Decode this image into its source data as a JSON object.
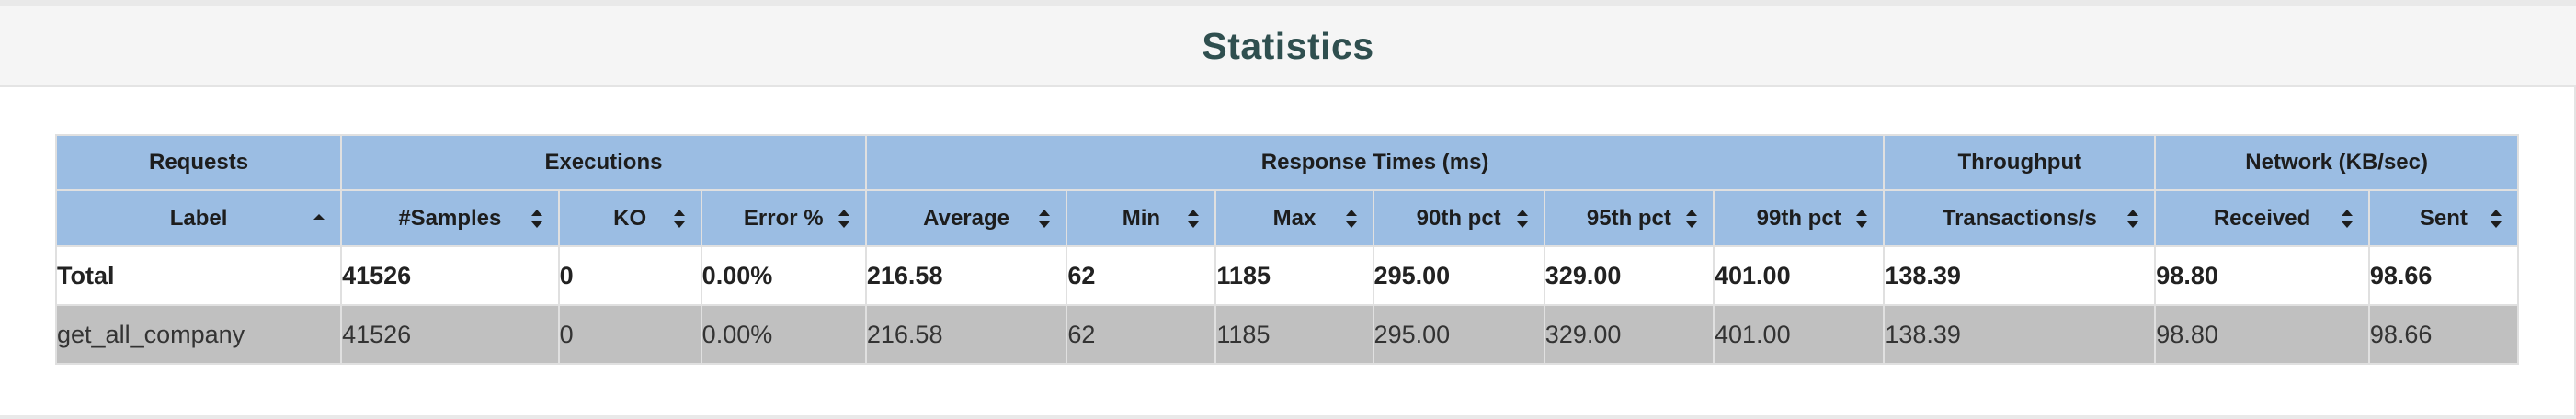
{
  "page": {
    "title": "Statistics"
  },
  "groups": {
    "requests": "Requests",
    "executions": "Executions",
    "response_times": "Response Times (ms)",
    "throughput": "Throughput",
    "network": "Network (KB/sec)"
  },
  "columns": {
    "label": "Label",
    "samples": "#Samples",
    "ko": "KO",
    "error_pct": "Error %",
    "average": "Average",
    "min": "Min",
    "max": "Max",
    "p90": "90th pct",
    "p95": "95th pct",
    "p99": "99th pct",
    "transactions": "Transactions/s",
    "received": "Received",
    "sent": "Sent"
  },
  "sort": {
    "active_column": "Label",
    "direction": "ascending"
  },
  "rows": [
    {
      "label": "Total",
      "samples": "41526",
      "ko": "0",
      "error_pct": "0.00%",
      "average": "216.58",
      "min": "62",
      "max": "1185",
      "p90": "295.00",
      "p95": "329.00",
      "p99": "401.00",
      "transactions": "138.39",
      "received": "98.80",
      "sent": "98.66"
    },
    {
      "label": "get_all_company",
      "samples": "41526",
      "ko": "0",
      "error_pct": "0.00%",
      "average": "216.58",
      "min": "62",
      "max": "1185",
      "p90": "295.00",
      "p95": "329.00",
      "p99": "401.00",
      "transactions": "138.39",
      "received": "98.80",
      "sent": "98.66"
    }
  ],
  "colors": {
    "header_bg": "#9bbde3",
    "title_color": "#2f4f4f",
    "row_alt_bg": "#c0c0c0",
    "title_bar_bg": "#f5f5f5"
  }
}
